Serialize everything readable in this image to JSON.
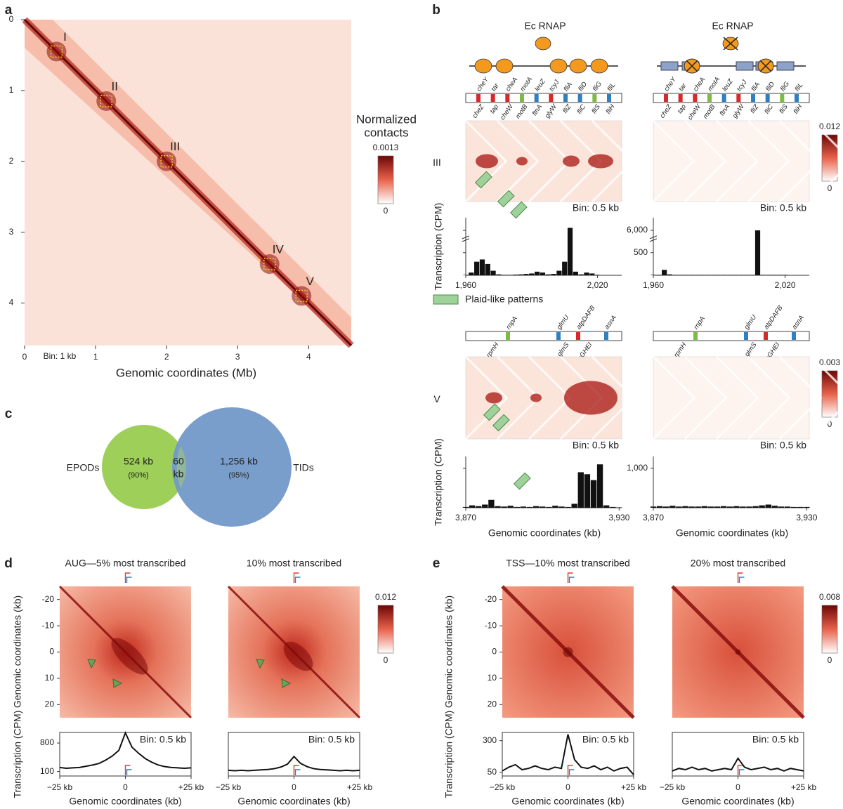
{
  "panel_a": {
    "label": "a",
    "xlabel": "Genomic coordinates (Mb)",
    "xlim": [
      0,
      4.6
    ],
    "ylim": [
      0,
      4.6
    ],
    "xticks": [
      0,
      1,
      2,
      3,
      4
    ],
    "yticks": [
      0,
      1,
      2,
      3,
      4
    ],
    "bin": "Bin: 1 kb",
    "domains": {
      "names": [
        "I",
        "II",
        "III",
        "IV",
        "V"
      ],
      "positions": [
        0.45,
        1.15,
        2.0,
        3.45,
        3.9
      ]
    },
    "colorbar": {
      "title": [
        "Normalized",
        "contacts"
      ],
      "max": 0.0013,
      "min": 0
    }
  },
  "panel_b": {
    "label": "b",
    "rnap": "Ec RNAP",
    "legend": "Plaid-like patterns",
    "legend_color": "#9fd19a",
    "ylabel": "Transcription (CPM)",
    "xlabel": "Genomic coordinates (kb)",
    "bin": "Bin: 0.5 kb",
    "regions": [
      {
        "name": "III",
        "genes_top": [
          "cheY",
          "tar",
          "cheA",
          "motA",
          "leuZ",
          "tcyJ",
          "fliA",
          "fliD",
          "fliG",
          "fliL"
        ],
        "genes_bottom": [
          "cheZ",
          "tap",
          "cheW",
          "motB",
          "ftnA",
          "glyW",
          "fliZ",
          "fliC",
          "fliS",
          "fliH"
        ],
        "colorbar": {
          "max": 0.012,
          "min": 0
        },
        "xlim": [
          1960,
          2031
        ],
        "xticks": [
          {
            "value": 1960,
            "label": "1,960"
          },
          {
            "value": 2020,
            "label": "2,020"
          }
        ],
        "ylim": [
          0,
          7000
        ],
        "ybreak": [
          700,
          5500
        ],
        "yticks": [
          {
            "value": 6000,
            "label": "6,000"
          },
          500
        ],
        "x": [
          1960,
          1962.5,
          1965,
          1967.5,
          1970,
          1972.5,
          1975,
          1977.5,
          1980,
          1982.5,
          1985,
          1987.5,
          1990,
          1992.5,
          1995,
          1997.5,
          2000,
          2002.5,
          2005,
          2007.5,
          2010,
          2012.5,
          2015,
          2017.5,
          2020
        ],
        "series": [
          {
            "values": [
              10,
              60,
              300,
              350,
              250,
              100,
              20,
              10,
              10,
              15,
              20,
              30,
              40,
              80,
              60,
              20,
              30,
              100,
              300,
              6200,
              80,
              20,
              60,
              40,
              10
            ]
          },
          {
            "values": [
              10,
              10,
              120,
              20,
              10,
              10,
              10,
              10,
              10,
              10,
              10,
              10,
              10,
              10,
              10,
              10,
              10,
              10,
              10,
              6000,
              10,
              10,
              10,
              10,
              10
            ]
          }
        ]
      },
      {
        "name": "V",
        "genes_top": [
          "rnpA",
          "glmU",
          "atpDAFB",
          "asnA"
        ],
        "genes_bottom": [
          "rpmH",
          "glmS",
          "atpGHEI"
        ],
        "colorbar": {
          "max": 0.003,
          "min": 0
        },
        "xlim": [
          3870,
          3931
        ],
        "xticks": [
          {
            "value": 3870,
            "label": "3,870"
          },
          {
            "value": 3930,
            "label": "3,930"
          }
        ],
        "ylim": [
          0,
          1300
        ],
        "yticks": [
          {
            "value": 1000,
            "label": "1,000"
          }
        ],
        "x": [
          3870,
          3872.5,
          3875,
          3877.5,
          3880,
          3882.5,
          3885,
          3887.5,
          3890,
          3892.5,
          3895,
          3897.5,
          3900,
          3902.5,
          3905,
          3907.5,
          3910,
          3912.5,
          3915,
          3917.5,
          3920,
          3922.5,
          3925,
          3927.5,
          3930
        ],
        "series": [
          {
            "values": [
              20,
              60,
              40,
              80,
              200,
              40,
              30,
              50,
              20,
              30,
              20,
              40,
              30,
              20,
              50,
              30,
              20,
              100,
              900,
              850,
              700,
              1100,
              60,
              20,
              10
            ]
          },
          {
            "values": [
              30,
              40,
              30,
              50,
              30,
              40,
              30,
              30,
              40,
              30,
              30,
              40,
              30,
              40,
              30,
              30,
              40,
              60,
              80,
              50,
              30,
              30,
              20,
              20,
              20
            ]
          }
        ]
      }
    ]
  },
  "panel_c": {
    "label": "c",
    "left": "EPODs",
    "right": "TIDs",
    "left_only": "524 kb",
    "left_pct": "(90%)",
    "overlap": [
      "60",
      "kb"
    ],
    "right_only": "1,256 kb",
    "right_pct": "(95%)"
  },
  "panel_d": {
    "label": "d",
    "titles": [
      "AUG—5% most transcribed",
      "10% most transcribed"
    ],
    "heat_ylabel": "Genomic coordinates (kb)",
    "heat_lim": [
      -25,
      25
    ],
    "heat_ticks": [
      -20,
      -10,
      0,
      10,
      20
    ],
    "colorbar": {
      "max": 0.012,
      "min": 0
    },
    "bin": "Bin: 0.5 kb",
    "ylabel": "Transcription (CPM)",
    "xlabel": "Genomic coordinates (kb)",
    "xlim": [
      -25,
      25
    ],
    "xticks": [
      {
        "value": -25,
        "label": "−25 kb"
      },
      0,
      {
        "value": 25,
        "label": "+25 kb"
      }
    ],
    "ylim": [
      -10,
      1060
    ],
    "yticks": [
      800,
      100
    ],
    "x": [
      -25,
      -22.5,
      -20,
      -17.5,
      -15,
      -12.5,
      -10,
      -7.5,
      -5,
      -2.5,
      0,
      2.5,
      5,
      7.5,
      10,
      12.5,
      15,
      17.5,
      20,
      22.5,
      25
    ],
    "series": [
      {
        "values": [
          200,
          180,
          190,
          200,
          230,
          260,
          300,
          380,
          480,
          620,
          1050,
          700,
          550,
          420,
          330,
          260,
          220,
          200,
          190,
          180,
          190
        ]
      },
      {
        "values": [
          130,
          120,
          130,
          120,
          130,
          140,
          150,
          170,
          210,
          280,
          470,
          300,
          220,
          170,
          150,
          140,
          130,
          120,
          130,
          120,
          130
        ]
      }
    ]
  },
  "panel_e": {
    "label": "e",
    "titles": [
      "TSS—10% most transcribed",
      "20% most transcribed"
    ],
    "heat_ylabel": "Genomic coordinates (kb)",
    "heat_lim": [
      -25,
      25
    ],
    "heat_ticks": [
      -20,
      -10,
      0,
      10,
      20
    ],
    "colorbar": {
      "max": 0.008,
      "min": 0
    },
    "bin": "Bin: 0.5 kb",
    "ylabel": "Transcription (CPM)",
    "xlabel": "Genomic coordinates (kb)",
    "xlim": [
      -25,
      25
    ],
    "xticks": [
      {
        "value": -25,
        "label": "−25 kb"
      },
      0,
      {
        "value": 25,
        "label": "+25 kb"
      }
    ],
    "ylim": [
      20,
      365
    ],
    "yticks": [
      300,
      50
    ],
    "x": [
      -25,
      -22.5,
      -20,
      -17.5,
      -15,
      -12.5,
      -10,
      -7.5,
      -5,
      -2.5,
      0,
      2.5,
      5,
      7.5,
      10,
      12.5,
      15,
      17.5,
      20,
      22.5,
      25
    ],
    "series": [
      {
        "values": [
          60,
          90,
          110,
          70,
          80,
          100,
          80,
          70,
          90,
          80,
          350,
          150,
          90,
          80,
          100,
          70,
          90,
          60,
          80,
          90,
          30
        ]
      },
      {
        "values": [
          60,
          80,
          70,
          90,
          70,
          80,
          60,
          70,
          80,
          70,
          160,
          90,
          70,
          80,
          90,
          70,
          80,
          60,
          80,
          70,
          60
        ]
      }
    ]
  }
}
